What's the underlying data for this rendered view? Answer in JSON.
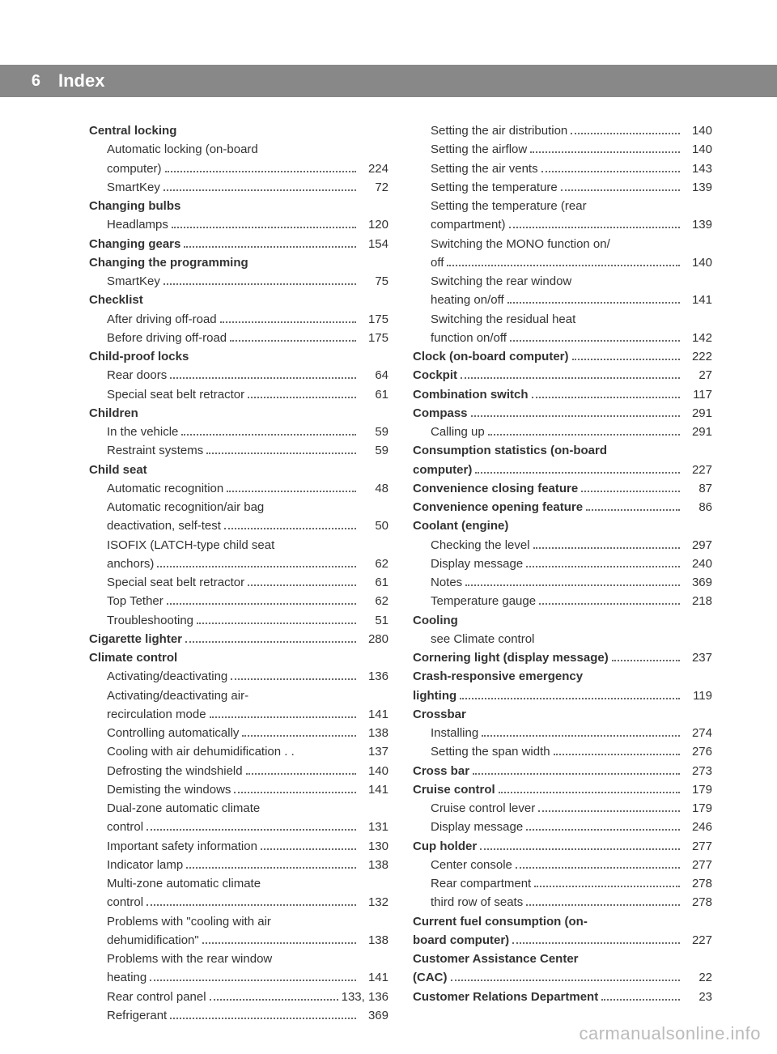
{
  "header": {
    "page_number": "6",
    "title": "Index"
  },
  "columns": [
    [
      {
        "label": "Central locking",
        "bold": true,
        "sub": false,
        "page": ""
      },
      {
        "label": "Automatic locking (on-board",
        "bold": false,
        "sub": true,
        "page": "",
        "nodots": true
      },
      {
        "label": "computer)",
        "bold": false,
        "sub": true,
        "page": "224"
      },
      {
        "label": "SmartKey",
        "bold": false,
        "sub": true,
        "page": "72"
      },
      {
        "label": "Changing bulbs",
        "bold": true,
        "sub": false,
        "page": ""
      },
      {
        "label": "Headlamps",
        "bold": false,
        "sub": true,
        "page": "120"
      },
      {
        "label": "Changing gears",
        "bold": true,
        "sub": false,
        "page": "154"
      },
      {
        "label": "Changing the programming",
        "bold": true,
        "sub": false,
        "page": ""
      },
      {
        "label": "SmartKey",
        "bold": false,
        "sub": true,
        "page": "75"
      },
      {
        "label": "Checklist",
        "bold": true,
        "sub": false,
        "page": ""
      },
      {
        "label": "After driving off-road",
        "bold": false,
        "sub": true,
        "page": "175"
      },
      {
        "label": "Before driving off-road",
        "bold": false,
        "sub": true,
        "page": "175"
      },
      {
        "label": "Child-proof locks",
        "bold": true,
        "sub": false,
        "page": ""
      },
      {
        "label": "Rear doors",
        "bold": false,
        "sub": true,
        "page": "64"
      },
      {
        "label": "Special seat belt retractor",
        "bold": false,
        "sub": true,
        "page": "61"
      },
      {
        "label": "Children",
        "bold": true,
        "sub": false,
        "page": ""
      },
      {
        "label": "In the vehicle",
        "bold": false,
        "sub": true,
        "page": "59"
      },
      {
        "label": "Restraint systems",
        "bold": false,
        "sub": true,
        "page": "59"
      },
      {
        "label": "Child seat",
        "bold": true,
        "sub": false,
        "page": ""
      },
      {
        "label": "Automatic recognition",
        "bold": false,
        "sub": true,
        "page": "48"
      },
      {
        "label": "Automatic recognition/air bag",
        "bold": false,
        "sub": true,
        "page": "",
        "nodots": true
      },
      {
        "label": "deactivation, self-test",
        "bold": false,
        "sub": true,
        "page": "50"
      },
      {
        "label": "ISOFIX (LATCH-type child seat",
        "bold": false,
        "sub": true,
        "page": "",
        "nodots": true
      },
      {
        "label": "anchors)",
        "bold": false,
        "sub": true,
        "page": "62"
      },
      {
        "label": "Special seat belt retractor",
        "bold": false,
        "sub": true,
        "page": "61"
      },
      {
        "label": "Top Tether",
        "bold": false,
        "sub": true,
        "page": "62"
      },
      {
        "label": "Troubleshooting",
        "bold": false,
        "sub": true,
        "page": "51"
      },
      {
        "label": "Cigarette lighter",
        "bold": true,
        "sub": false,
        "page": "280"
      },
      {
        "label": "Climate control",
        "bold": true,
        "sub": false,
        "page": ""
      },
      {
        "label": "Activating/deactivating",
        "bold": false,
        "sub": true,
        "page": "136"
      },
      {
        "label": "Activating/deactivating air-",
        "bold": false,
        "sub": true,
        "page": "",
        "nodots": true
      },
      {
        "label": "recirculation mode",
        "bold": false,
        "sub": true,
        "page": "141"
      },
      {
        "label": "Controlling automatically",
        "bold": false,
        "sub": true,
        "page": "138"
      },
      {
        "label": "Cooling with air dehumidification . .",
        "bold": false,
        "sub": true,
        "page": "137",
        "nodots": true,
        "inline_dots": true
      },
      {
        "label": "Defrosting the windshield",
        "bold": false,
        "sub": true,
        "page": "140"
      },
      {
        "label": "Demisting the windows",
        "bold": false,
        "sub": true,
        "page": "141"
      },
      {
        "label": "Dual-zone automatic climate",
        "bold": false,
        "sub": true,
        "page": "",
        "nodots": true
      },
      {
        "label": "control",
        "bold": false,
        "sub": true,
        "page": "131"
      },
      {
        "label": "Important safety information",
        "bold": false,
        "sub": true,
        "page": "130"
      },
      {
        "label": "Indicator lamp",
        "bold": false,
        "sub": true,
        "page": "138"
      },
      {
        "label": "Multi-zone automatic climate",
        "bold": false,
        "sub": true,
        "page": "",
        "nodots": true
      },
      {
        "label": "control",
        "bold": false,
        "sub": true,
        "page": "132"
      },
      {
        "label": "Problems with \"cooling with air",
        "bold": false,
        "sub": true,
        "page": "",
        "nodots": true
      },
      {
        "label": "dehumidification\"",
        "bold": false,
        "sub": true,
        "page": "138"
      },
      {
        "label": "Problems with the rear window",
        "bold": false,
        "sub": true,
        "page": "",
        "nodots": true
      },
      {
        "label": "heating",
        "bold": false,
        "sub": true,
        "page": "141"
      },
      {
        "label": "Rear control panel",
        "bold": false,
        "sub": true,
        "page": "133, 136"
      },
      {
        "label": "Refrigerant",
        "bold": false,
        "sub": true,
        "page": "369"
      }
    ],
    [
      {
        "label": "Setting the air distribution",
        "bold": false,
        "sub": true,
        "page": "140"
      },
      {
        "label": "Setting the airflow",
        "bold": false,
        "sub": true,
        "page": "140"
      },
      {
        "label": "Setting the air vents",
        "bold": false,
        "sub": true,
        "page": "143"
      },
      {
        "label": "Setting the temperature",
        "bold": false,
        "sub": true,
        "page": "139"
      },
      {
        "label": "Setting the temperature (rear",
        "bold": false,
        "sub": true,
        "page": "",
        "nodots": true
      },
      {
        "label": "compartment)",
        "bold": false,
        "sub": true,
        "page": "139"
      },
      {
        "label": "Switching the MONO function on/",
        "bold": false,
        "sub": true,
        "page": "",
        "nodots": true
      },
      {
        "label": "off",
        "bold": false,
        "sub": true,
        "page": "140"
      },
      {
        "label": "Switching the rear window",
        "bold": false,
        "sub": true,
        "page": "",
        "nodots": true
      },
      {
        "label": "heating on/off",
        "bold": false,
        "sub": true,
        "page": "141"
      },
      {
        "label": "Switching the residual heat",
        "bold": false,
        "sub": true,
        "page": "",
        "nodots": true
      },
      {
        "label": "function on/off",
        "bold": false,
        "sub": true,
        "page": "142"
      },
      {
        "label": "Clock (on-board computer)",
        "bold": true,
        "sub": false,
        "page": "222"
      },
      {
        "label": "Cockpit",
        "bold": true,
        "sub": false,
        "page": "27"
      },
      {
        "label": "Combination switch",
        "bold": true,
        "sub": false,
        "page": "117"
      },
      {
        "label": "Compass",
        "bold": true,
        "sub": false,
        "page": "291"
      },
      {
        "label": "Calling up",
        "bold": false,
        "sub": true,
        "page": "291"
      },
      {
        "label": "Consumption statistics (on-board",
        "bold": true,
        "sub": false,
        "page": "",
        "nodots": true
      },
      {
        "label": "computer)",
        "bold": true,
        "sub": false,
        "page": "227"
      },
      {
        "label": "Convenience closing feature",
        "bold": true,
        "sub": false,
        "page": "87"
      },
      {
        "label": "Convenience opening feature",
        "bold": true,
        "sub": false,
        "page": "86"
      },
      {
        "label": "Coolant (engine)",
        "bold": true,
        "sub": false,
        "page": ""
      },
      {
        "label": "Checking the level",
        "bold": false,
        "sub": true,
        "page": "297"
      },
      {
        "label": "Display message",
        "bold": false,
        "sub": true,
        "page": "240"
      },
      {
        "label": "Notes",
        "bold": false,
        "sub": true,
        "page": "369"
      },
      {
        "label": "Temperature gauge",
        "bold": false,
        "sub": true,
        "page": "218"
      },
      {
        "label": "Cooling",
        "bold": true,
        "sub": false,
        "page": ""
      },
      {
        "label": "see Climate control",
        "bold": false,
        "sub": true,
        "page": "",
        "nodots": true
      },
      {
        "label": "Cornering light (display message)",
        "bold": true,
        "sub": false,
        "page": "237",
        "shortdots": true
      },
      {
        "label": "Crash-responsive emergency",
        "bold": true,
        "sub": false,
        "page": "",
        "nodots": true
      },
      {
        "label": "lighting",
        "bold": true,
        "sub": false,
        "page": "119"
      },
      {
        "label": "Crossbar",
        "bold": true,
        "sub": false,
        "page": ""
      },
      {
        "label": "Installing",
        "bold": false,
        "sub": true,
        "page": "274"
      },
      {
        "label": "Setting the span width",
        "bold": false,
        "sub": true,
        "page": "276"
      },
      {
        "label": "Cross bar",
        "bold": true,
        "sub": false,
        "page": "273"
      },
      {
        "label": "Cruise control",
        "bold": true,
        "sub": false,
        "page": "179"
      },
      {
        "label": "Cruise control lever",
        "bold": false,
        "sub": true,
        "page": "179"
      },
      {
        "label": "Display message",
        "bold": false,
        "sub": true,
        "page": "246"
      },
      {
        "label": "Cup holder",
        "bold": true,
        "sub": false,
        "page": "277"
      },
      {
        "label": "Center console",
        "bold": false,
        "sub": true,
        "page": "277"
      },
      {
        "label": "Rear compartment",
        "bold": false,
        "sub": true,
        "page": "278"
      },
      {
        "label": "third row of seats",
        "bold": false,
        "sub": true,
        "page": "278"
      },
      {
        "label": "Current fuel consumption (on-",
        "bold": true,
        "sub": false,
        "page": "",
        "nodots": true
      },
      {
        "label": "board computer)",
        "bold": true,
        "sub": false,
        "page": "227"
      },
      {
        "label": "Customer Assistance Center",
        "bold": true,
        "sub": false,
        "page": "",
        "nodots": true
      },
      {
        "label": "(CAC)",
        "bold": true,
        "sub": false,
        "page": "22"
      },
      {
        "label": "Customer Relations Department",
        "bold": true,
        "sub": false,
        "page": "23"
      }
    ]
  ],
  "watermark": "carmanualsonline.info",
  "colors": {
    "header_bg": "#888888",
    "header_text": "#ffffff",
    "body_text": "#333333",
    "dots": "#666666",
    "watermark": "rgba(120,120,120,0.5)"
  }
}
